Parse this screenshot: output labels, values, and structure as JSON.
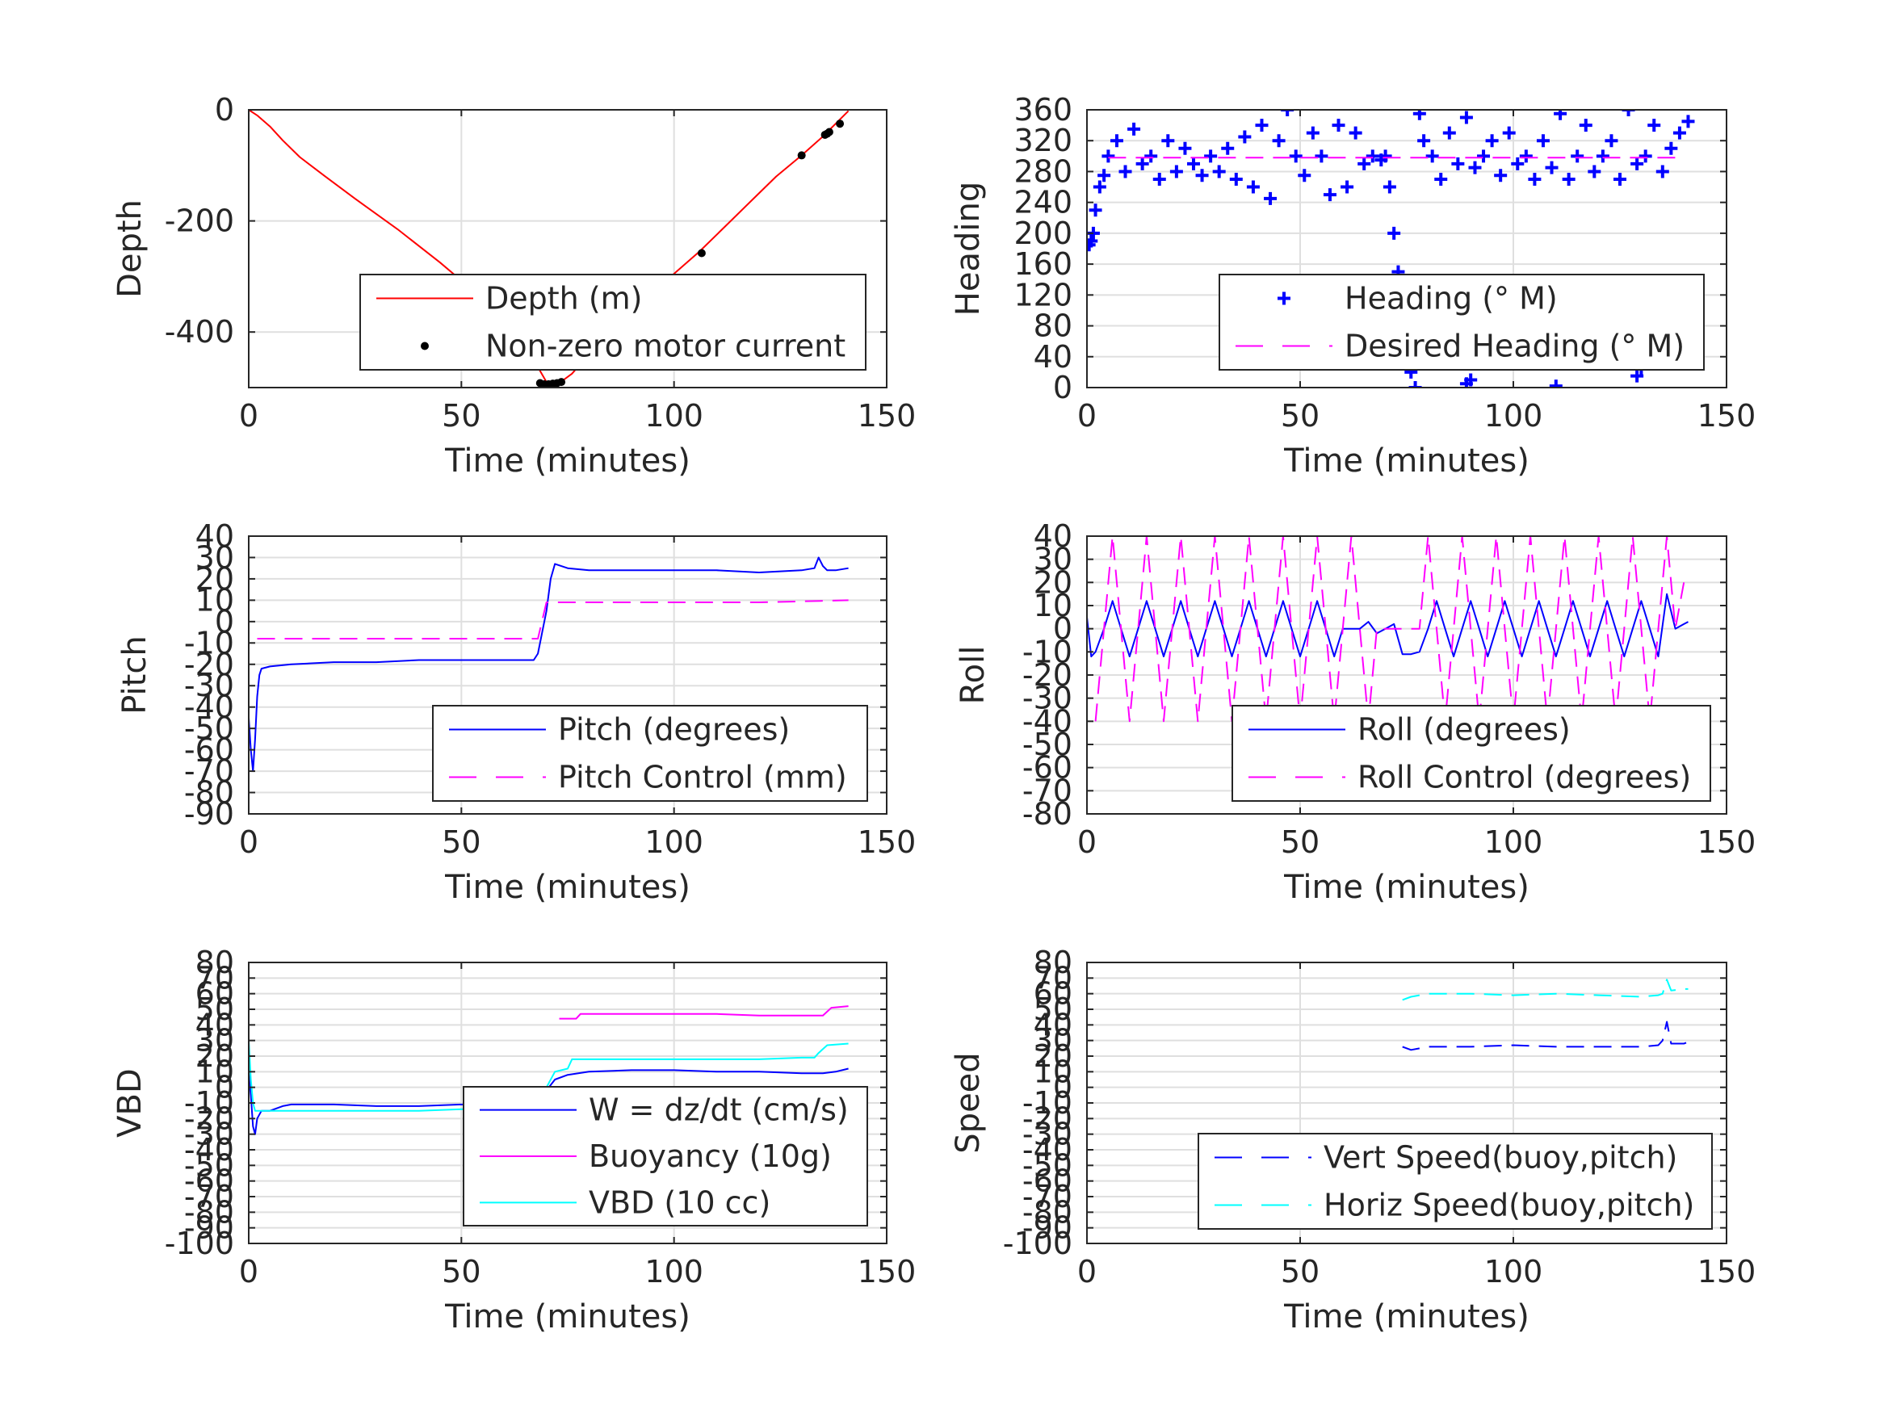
{
  "figure": {
    "background": "#ffffff",
    "grid_color": "#dfdfdf",
    "axis_color": "#262626"
  },
  "chart_data": [
    {
      "id": "depth",
      "type": "line",
      "xlabel": "Time (minutes)",
      "ylabel": "Depth",
      "xlim": [
        0,
        150
      ],
      "ylim": [
        -500,
        0
      ],
      "xticks": [
        0,
        50,
        100,
        150
      ],
      "yticks": [
        -400,
        -200,
        0
      ],
      "grid": true,
      "legend_position": "bottom-right",
      "series": [
        {
          "name": "Depth (m)",
          "color": "#ff0000",
          "style": "solid",
          "x": [
            0,
            2,
            5,
            8,
            12,
            18,
            25,
            35,
            45,
            55,
            62,
            67,
            70,
            73,
            76,
            80,
            88,
            95,
            100,
            106,
            112,
            118,
            124,
            130,
            135,
            138,
            141
          ],
          "y": [
            0,
            -10,
            -30,
            -55,
            -85,
            -120,
            -160,
            -215,
            -275,
            -340,
            -395,
            -450,
            -490,
            -492,
            -475,
            -440,
            -390,
            -330,
            -295,
            -255,
            -210,
            -165,
            -120,
            -82,
            -48,
            -25,
            -2
          ]
        },
        {
          "name": "Non-zero motor current",
          "color": "#000000",
          "style": "dots",
          "x": [
            68.5,
            69.5,
            70.5,
            71.5,
            72.5,
            73.5,
            78.5,
            106.5,
            130,
            135.5,
            136,
            136.5,
            139
          ],
          "y": [
            -492,
            -494,
            -494,
            -493,
            -492,
            -490,
            -458,
            -258,
            -82,
            -45,
            -43,
            -40,
            -25
          ]
        }
      ]
    },
    {
      "id": "heading",
      "type": "scatter",
      "xlabel": "Time (minutes)",
      "ylabel": "Heading",
      "xlim": [
        0,
        150
      ],
      "ylim": [
        0,
        360
      ],
      "xticks": [
        0,
        50,
        100,
        150
      ],
      "yticks": [
        0,
        40,
        80,
        120,
        160,
        200,
        240,
        280,
        320,
        360
      ],
      "grid": true,
      "legend_position": "bottom-right",
      "series": [
        {
          "name": "Heading (° M)",
          "color": "#0000ff",
          "style": "plus",
          "x": [
            0.5,
            1,
            1.5,
            2,
            3,
            4,
            5,
            7,
            9,
            11,
            13,
            15,
            17,
            19,
            21,
            23,
            25,
            27,
            29,
            31,
            33,
            35,
            37,
            39,
            41,
            43,
            45,
            47,
            49,
            51,
            53,
            55,
            57,
            59,
            61,
            63,
            65,
            67,
            69,
            70,
            71,
            72,
            73,
            74,
            75,
            76,
            77,
            78,
            79,
            81,
            83,
            85,
            87,
            89,
            91,
            93,
            95,
            97,
            99,
            101,
            103,
            105,
            107,
            109,
            111,
            113,
            115,
            117,
            119,
            121,
            123,
            125,
            127,
            129,
            131,
            133,
            135,
            137,
            139,
            141,
            89,
            90,
            110,
            129,
            130
          ],
          "y": [
            185,
            190,
            200,
            230,
            260,
            275,
            300,
            320,
            280,
            335,
            290,
            300,
            270,
            320,
            280,
            310,
            290,
            275,
            300,
            280,
            310,
            270,
            325,
            260,
            340,
            245,
            320,
            360,
            300,
            275,
            330,
            300,
            250,
            340,
            260,
            330,
            290,
            300,
            295,
            300,
            260,
            200,
            150,
            130,
            80,
            20,
            0,
            355,
            320,
            300,
            270,
            330,
            290,
            350,
            285,
            300,
            320,
            275,
            330,
            290,
            300,
            270,
            320,
            285,
            355,
            270,
            300,
            340,
            280,
            300,
            320,
            270,
            360,
            290,
            300,
            340,
            280,
            310,
            330,
            345,
            5,
            10,
            2,
            15,
            25
          ]
        },
        {
          "name": "Desired Heading (° M)",
          "color": "#ff00ff",
          "style": "dashed",
          "x": [
            5,
            140
          ],
          "y": [
            298,
            298
          ]
        }
      ]
    },
    {
      "id": "pitch",
      "type": "line",
      "xlabel": "Time (minutes)",
      "ylabel": "Pitch",
      "xlim": [
        0,
        150
      ],
      "ylim": [
        -90,
        40
      ],
      "xticks": [
        0,
        50,
        100,
        150
      ],
      "yticks": [
        -90,
        -80,
        -70,
        -60,
        -50,
        -40,
        -30,
        -20,
        -10,
        0,
        10,
        20,
        30,
        40
      ],
      "grid": true,
      "legend_position": "bottom-right",
      "series": [
        {
          "name": "Pitch (degrees)",
          "color": "#0000ff",
          "style": "solid",
          "x": [
            0,
            0.5,
            1,
            1.5,
            2,
            2.5,
            3,
            5,
            10,
            20,
            30,
            40,
            50,
            60,
            65,
            67,
            68,
            69,
            70,
            71,
            72,
            75,
            80,
            90,
            100,
            110,
            120,
            130,
            133,
            134,
            135,
            136,
            138,
            141
          ],
          "y": [
            -45,
            -60,
            -70,
            -55,
            -35,
            -25,
            -22,
            -21,
            -20,
            -19,
            -19,
            -18,
            -18,
            -18,
            -18,
            -18,
            -15,
            -5,
            5,
            20,
            27,
            25,
            24,
            24,
            24,
            24,
            23,
            24,
            25,
            30,
            26,
            24,
            24,
            25
          ]
        },
        {
          "name": "Pitch Control (mm)",
          "color": "#ff00ff",
          "style": "dashed",
          "x": [
            2,
            5,
            20,
            40,
            60,
            68,
            70,
            72,
            80,
            100,
            120,
            141
          ],
          "y": [
            -8,
            -8,
            -8,
            -8,
            -8,
            -8,
            9,
            9,
            9,
            9,
            9,
            10
          ]
        }
      ]
    },
    {
      "id": "roll",
      "type": "line",
      "xlabel": "Time (minutes)",
      "ylabel": "Roll",
      "xlim": [
        0,
        150
      ],
      "ylim": [
        -80,
        40
      ],
      "xticks": [
        0,
        50,
        100,
        150
      ],
      "yticks": [
        -80,
        -70,
        -60,
        -50,
        -40,
        -30,
        -20,
        -10,
        0,
        10,
        20,
        30,
        40
      ],
      "grid": true,
      "legend_position": "bottom-right",
      "series": [
        {
          "name": "Roll (degrees)",
          "color": "#0000ff",
          "style": "solid",
          "x": [
            0,
            1,
            2,
            4,
            6,
            8,
            10,
            12,
            14,
            16,
            18,
            20,
            22,
            24,
            26,
            28,
            30,
            32,
            34,
            36,
            38,
            40,
            42,
            44,
            46,
            48,
            50,
            52,
            54,
            56,
            58,
            60,
            62,
            64,
            66,
            68,
            70,
            72,
            74,
            76,
            78,
            80,
            82,
            84,
            86,
            88,
            90,
            92,
            94,
            96,
            98,
            100,
            102,
            104,
            106,
            108,
            110,
            112,
            114,
            116,
            118,
            120,
            122,
            124,
            126,
            128,
            130,
            132,
            134,
            136,
            138,
            140,
            141
          ],
          "y": [
            5,
            -12,
            -10,
            0,
            12,
            0,
            -12,
            0,
            12,
            0,
            -12,
            0,
            12,
            0,
            -12,
            0,
            12,
            0,
            -12,
            0,
            12,
            0,
            -12,
            0,
            12,
            0,
            -12,
            0,
            12,
            0,
            -12,
            0,
            0,
            0,
            3,
            -2,
            0,
            2,
            -11,
            -11,
            -10,
            0,
            12,
            0,
            -12,
            0,
            12,
            0,
            -12,
            0,
            12,
            0,
            -12,
            0,
            12,
            0,
            -12,
            0,
            12,
            0,
            -12,
            0,
            12,
            0,
            -12,
            0,
            12,
            0,
            -12,
            15,
            0,
            2,
            3
          ]
        },
        {
          "name": "Roll Control (degrees)",
          "color": "#ff00ff",
          "style": "dashed",
          "x": [
            2,
            4,
            6,
            8,
            10,
            12,
            14,
            16,
            18,
            20,
            22,
            24,
            26,
            28,
            30,
            32,
            34,
            36,
            38,
            40,
            42,
            44,
            46,
            48,
            50,
            52,
            54,
            56,
            58,
            60,
            62,
            64,
            66,
            68,
            76,
            78,
            80,
            82,
            84,
            86,
            88,
            90,
            92,
            94,
            96,
            98,
            100,
            102,
            104,
            106,
            108,
            110,
            112,
            114,
            116,
            118,
            120,
            122,
            124,
            126,
            128,
            130,
            132,
            134,
            136,
            138,
            140
          ],
          "y": [
            -40,
            0,
            40,
            0,
            -40,
            0,
            40,
            0,
            -40,
            0,
            40,
            0,
            -40,
            0,
            40,
            0,
            -40,
            0,
            40,
            0,
            -40,
            0,
            40,
            0,
            -40,
            0,
            40,
            0,
            -40,
            0,
            40,
            0,
            -40,
            0,
            0,
            0,
            40,
            0,
            -40,
            0,
            40,
            0,
            -40,
            0,
            40,
            0,
            -40,
            0,
            40,
            0,
            -40,
            0,
            40,
            0,
            -40,
            0,
            40,
            0,
            -40,
            0,
            40,
            0,
            -40,
            0,
            40,
            0,
            20
          ]
        }
      ]
    },
    {
      "id": "vbd",
      "type": "line",
      "xlabel": "Time (minutes)",
      "ylabel": "VBD",
      "xlim": [
        0,
        150
      ],
      "ylim": [
        -100,
        80
      ],
      "xticks": [
        0,
        50,
        100,
        150
      ],
      "yticks": [
        -100,
        -90,
        -80,
        -70,
        -60,
        -50,
        -40,
        -30,
        -20,
        -10,
        0,
        10,
        20,
        30,
        40,
        50,
        60,
        70,
        80
      ],
      "grid": true,
      "legend_position": "bottom-right",
      "series": [
        {
          "name": "W = dz/dt (cm/s)",
          "color": "#0000ff",
          "style": "solid",
          "x": [
            0,
            0.5,
            1,
            1.5,
            2,
            3,
            5,
            8,
            10,
            20,
            30,
            40,
            50,
            60,
            66,
            68,
            70,
            72,
            75,
            80,
            90,
            100,
            110,
            120,
            130,
            135,
            138,
            141
          ],
          "y": [
            10,
            -5,
            -25,
            -30,
            -20,
            -15,
            -15,
            -12,
            -11,
            -11,
            -12,
            -12,
            -11,
            -12,
            -12,
            -10,
            -2,
            5,
            8,
            10,
            11,
            11,
            10,
            10,
            9,
            9,
            10,
            12
          ]
        },
        {
          "name": "Buoyancy (10g)",
          "color": "#ff00ff",
          "style": "solid",
          "x": [
            73,
            77,
            78,
            90,
            100,
            110,
            120,
            130,
            135,
            137,
            141
          ],
          "y": [
            44,
            44,
            47,
            47,
            47,
            47,
            46,
            46,
            46,
            51,
            52
          ]
        },
        {
          "name": "VBD (10 cc)",
          "color": "#00ffff",
          "style": "solid",
          "x": [
            0,
            0.5,
            1,
            1.5,
            2,
            3,
            5,
            10,
            20,
            30,
            40,
            50,
            60,
            66,
            68,
            70,
            72,
            75,
            76,
            80,
            90,
            100,
            110,
            120,
            130,
            133,
            134,
            136,
            141
          ],
          "y": [
            30,
            5,
            -10,
            -15,
            -15,
            -15,
            -15,
            -15,
            -15,
            -15,
            -15,
            -14,
            -14,
            -14,
            -12,
            0,
            10,
            12,
            18,
            18,
            18,
            18,
            18,
            18,
            19,
            19,
            22,
            27,
            28
          ]
        }
      ]
    },
    {
      "id": "speed",
      "type": "line",
      "xlabel": "Time (minutes)",
      "ylabel": "Speed",
      "xlim": [
        0,
        150
      ],
      "ylim": [
        -100,
        80
      ],
      "xticks": [
        0,
        50,
        100,
        150
      ],
      "yticks": [
        -100,
        -90,
        -80,
        -70,
        -60,
        -50,
        -40,
        -30,
        -20,
        -10,
        0,
        10,
        20,
        30,
        40,
        50,
        60,
        70,
        80
      ],
      "grid": true,
      "legend_position": "bottom-right",
      "series": [
        {
          "name": "Vert Speed(buoy,pitch)",
          "color": "#0000ff",
          "style": "dashed",
          "x": [
            74,
            76,
            80,
            90,
            100,
            110,
            120,
            130,
            134,
            135,
            136,
            137,
            140,
            141
          ],
          "y": [
            26,
            24,
            26,
            26,
            27,
            26,
            26,
            26,
            27,
            30,
            42,
            28,
            28,
            29
          ]
        },
        {
          "name": "Horiz Speed(buoy,pitch)",
          "color": "#00ffff",
          "style": "dashed",
          "x": [
            74,
            76,
            80,
            90,
            100,
            110,
            120,
            130,
            134,
            135,
            136,
            137,
            140,
            141
          ],
          "y": [
            56,
            58,
            60,
            60,
            59,
            60,
            59,
            58,
            59,
            60,
            69,
            62,
            63,
            63
          ]
        }
      ]
    }
  ]
}
